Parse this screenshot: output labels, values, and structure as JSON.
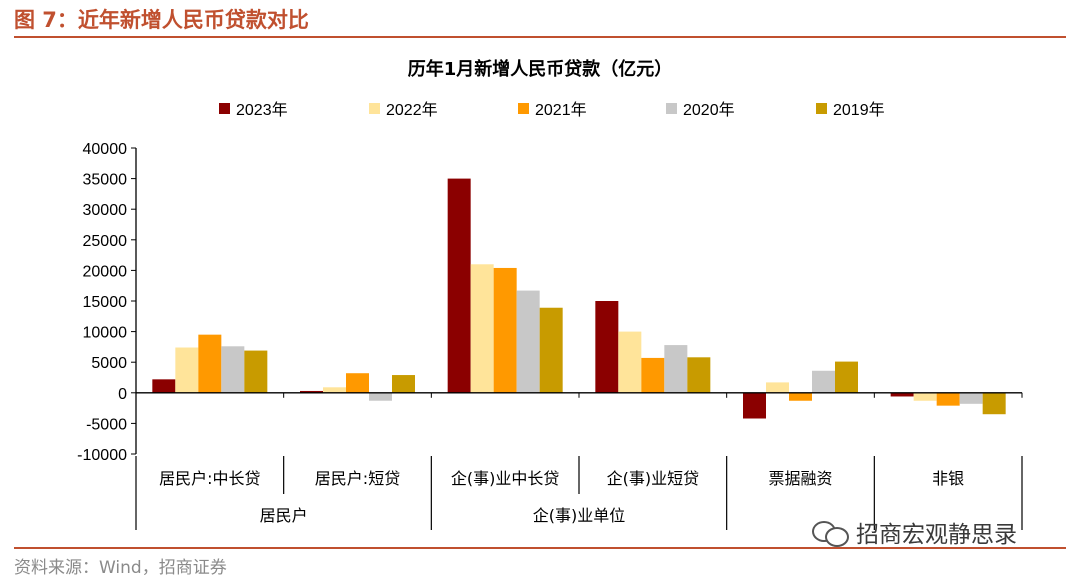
{
  "figure": {
    "label": "图 7：近年新增人民币贷款对比",
    "source": "资料来源：Wind，招商证券",
    "watermark": "招商宏观静思录"
  },
  "colors": {
    "accent": "#c0502f",
    "series": [
      "#8b0000",
      "#ffe49a",
      "#ff9900",
      "#c8c8c8",
      "#c89b00"
    ]
  },
  "chart_data": {
    "type": "bar",
    "title": "历年1月新增人民币贷款（亿元）",
    "categories": [
      "居民户:中长贷",
      "居民户:短贷",
      "企(事)业中长贷",
      "企(事)业短贷",
      "票据融资",
      "非银"
    ],
    "groups": [
      {
        "label": "居民户",
        "categories": [
          "居民户:中长贷",
          "居民户:短贷"
        ]
      },
      {
        "label": "企(事)业单位",
        "categories": [
          "企(事)业中长贷",
          "企(事)业短贷"
        ]
      }
    ],
    "series": [
      {
        "name": "2023年",
        "values": [
          2200,
          300,
          35000,
          15000,
          -4200,
          -600
        ]
      },
      {
        "name": "2022年",
        "values": [
          7400,
          900,
          21000,
          10000,
          1700,
          -1300
        ]
      },
      {
        "name": "2021年",
        "values": [
          9500,
          3200,
          20400,
          5700,
          -1300,
          -2100
        ]
      },
      {
        "name": "2020年",
        "values": [
          7600,
          -1300,
          16700,
          7800,
          3600,
          -1800
        ]
      },
      {
        "name": "2019年",
        "values": [
          6900,
          2900,
          13900,
          5800,
          5100,
          -3500
        ]
      }
    ],
    "ylim": [
      -10000,
      40000
    ],
    "yticks": [
      "40000",
      "35000",
      "30000",
      "25000",
      "20000",
      "15000",
      "10000",
      "5000",
      "0",
      "-5000",
      "-10000"
    ],
    "xlabel": "",
    "ylabel": "",
    "legend": "top",
    "grid": false
  }
}
